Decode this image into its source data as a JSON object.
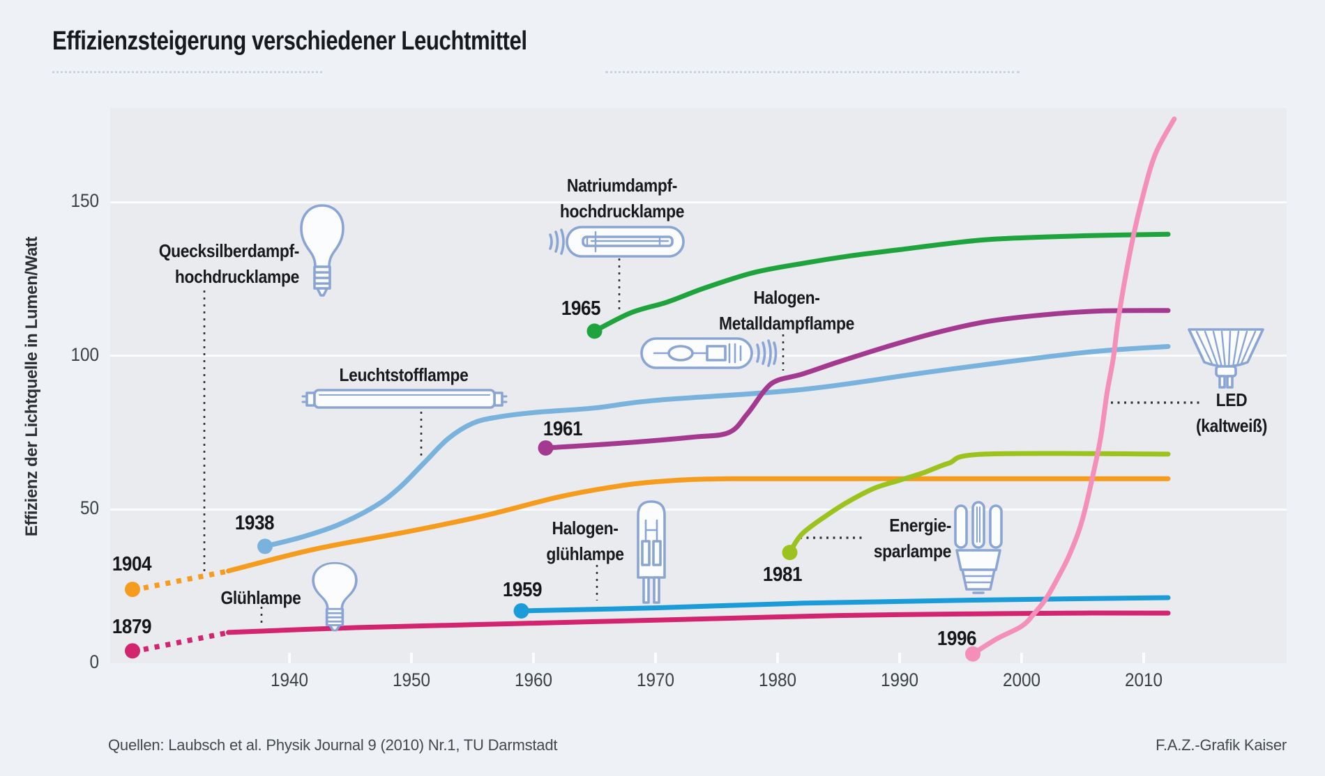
{
  "title": "Effizienzsteigerung verschiedener Leuchtmittel",
  "source": "Quellen: Laubsch et al. Physik Journal 9 (2010) Nr.1, TU Darmstadt",
  "credit": "F.A.Z.-Grafik Kaiser",
  "y_axis": {
    "title": "Effizienz der Lichtquelle in Lumen/Watt",
    "ticks": [
      "0",
      "50",
      "100",
      "150"
    ]
  },
  "x_axis": {
    "ticks": [
      "1940",
      "1950",
      "1960",
      "1970",
      "1980",
      "1990",
      "2000",
      "2010"
    ]
  },
  "colors": {
    "page_background": "#eef1f5",
    "plot_background": "#e9ebee",
    "top_band": "#edeff3",
    "gridline": "#fbfcfd",
    "text": "#17191c",
    "tick_text": "#3b4045",
    "icon_stroke": "#8aa5d3",
    "leader": "#2e3235"
  },
  "chart_data": {
    "type": "line",
    "title": "Effizienzsteigerung verschiedener Leuchtmittel",
    "xlabel": "",
    "ylabel": "Effizienz der Lichtquelle in Lumen/Watt",
    "xlim": [
      1925,
      2021
    ],
    "ylim": [
      0,
      180
    ],
    "grid": "horizontal-white-lines",
    "legend_position": "inline-labels-with-leader-lines",
    "series": [
      {
        "id": "gluehlampe",
        "name": "Glühlampe",
        "label_lines": [
          "Glühlampe"
        ],
        "start_label": "1879",
        "color": "#D2246F",
        "icon": "incandescent-bulb-icon",
        "intro": {
          "note": "dotted pre-axis segment from 1879 dot",
          "value": 4
        },
        "points": [
          [
            1935,
            10
          ],
          [
            1945,
            11.5
          ],
          [
            1955,
            12.5
          ],
          [
            1965,
            13.5
          ],
          [
            1975,
            14.5
          ],
          [
            1985,
            15.5
          ],
          [
            1995,
            16
          ],
          [
            2005,
            16.3
          ],
          [
            2012,
            16.3
          ]
        ]
      },
      {
        "id": "quecksilber",
        "name": "Quecksilberdampf-hochdrucklampe",
        "label_lines": [
          "Quecksilberdampf-",
          "hochdrucklampe"
        ],
        "start_label": "1904",
        "color": "#F59B1E",
        "icon": "mercury-vapor-bulb-icon",
        "intro": {
          "note": "dotted pre-axis segment from 1904 dot",
          "value": 24
        },
        "points": [
          [
            1935,
            30
          ],
          [
            1942,
            37
          ],
          [
            1950,
            43
          ],
          [
            1956,
            48
          ],
          [
            1962,
            54
          ],
          [
            1966,
            57
          ],
          [
            1970,
            59
          ],
          [
            1976,
            60
          ],
          [
            1990,
            60
          ],
          [
            2012,
            60
          ]
        ]
      },
      {
        "id": "leuchtstoff",
        "name": "Leuchtstofflampe",
        "label_lines": [
          "Leuchtstofflampe"
        ],
        "start_label": "1938",
        "color": "#79B2DC",
        "icon": "fluorescent-tube-icon",
        "points": [
          [
            1938,
            38
          ],
          [
            1941,
            41
          ],
          [
            1944,
            45
          ],
          [
            1947,
            51
          ],
          [
            1949,
            57
          ],
          [
            1951,
            65
          ],
          [
            1953,
            73
          ],
          [
            1955,
            78
          ],
          [
            1957,
            80
          ],
          [
            1960,
            81.5
          ],
          [
            1965,
            83
          ],
          [
            1970,
            85.5
          ],
          [
            1982,
            89
          ],
          [
            1993,
            95
          ],
          [
            2005,
            101
          ],
          [
            2012,
            103
          ]
        ]
      },
      {
        "id": "halogenglueh",
        "name": "Halogen-glühlampe",
        "label_lines": [
          "Halogen-",
          "glühlampe"
        ],
        "start_label": "1959",
        "color": "#1B9CD9",
        "icon": "halogen-capsule-icon",
        "points": [
          [
            1959,
            17
          ],
          [
            1970,
            18
          ],
          [
            1982,
            19.5
          ],
          [
            1996,
            20.5
          ],
          [
            2012,
            21.3
          ]
        ]
      },
      {
        "id": "halogenmetall",
        "name": "Halogen-Metalldampflampe",
        "label_lines": [
          "Halogen-",
          "Metalldampflampe"
        ],
        "start_label": "1961",
        "color": "#A33A90",
        "icon": "metal-halide-lamp-icon",
        "points": [
          [
            1961,
            70
          ],
          [
            1967,
            71.5
          ],
          [
            1973,
            73.5
          ],
          [
            1976,
            75
          ],
          [
            1977.5,
            81
          ],
          [
            1979,
            89
          ],
          [
            1980,
            92
          ],
          [
            1982,
            94
          ],
          [
            1985,
            98
          ],
          [
            1989,
            103
          ],
          [
            1993,
            107.5
          ],
          [
            1997,
            111
          ],
          [
            2001,
            113
          ],
          [
            2006,
            114.5
          ],
          [
            2012,
            114.7
          ]
        ]
      },
      {
        "id": "natrium",
        "name": "Natriumdampf-hochdrucklampe",
        "label_lines": [
          "Natriumdampf-",
          "hochdrucklampe"
        ],
        "start_label": "1965",
        "color": "#1FA33C",
        "icon": "sodium-vapor-lamp-icon",
        "points": [
          [
            1965,
            108
          ],
          [
            1968,
            114
          ],
          [
            1971,
            117.5
          ],
          [
            1974,
            122
          ],
          [
            1978,
            127
          ],
          [
            1982,
            130
          ],
          [
            1986,
            132.5
          ],
          [
            1990,
            134.5
          ],
          [
            1994,
            136.5
          ],
          [
            1998,
            138
          ],
          [
            2005,
            139
          ],
          [
            2012,
            139.5
          ]
        ]
      },
      {
        "id": "energiespar",
        "name": "Energiesparlampe",
        "label_lines": [
          "Energie-",
          "sparlampe"
        ],
        "start_label": "1981",
        "color": "#9CC21E",
        "icon": "cfl-icon",
        "points": [
          [
            1981,
            36
          ],
          [
            1982,
            42
          ],
          [
            1984,
            48
          ],
          [
            1986,
            53
          ],
          [
            1988,
            57
          ],
          [
            1990,
            59.5
          ],
          [
            1992,
            62
          ],
          [
            1994,
            65
          ],
          [
            1997,
            68
          ],
          [
            2012,
            68
          ]
        ]
      },
      {
        "id": "led",
        "name": "LED (kaltweiß)",
        "label_lines": [
          "LED",
          "(kaltweiß)"
        ],
        "start_label": "1996",
        "color": "#F48FBA",
        "icon": "led-spot-icon",
        "points": [
          [
            1996,
            3
          ],
          [
            1998,
            8
          ],
          [
            2000,
            12
          ],
          [
            2001,
            16
          ],
          [
            2002,
            21
          ],
          [
            2003,
            28
          ],
          [
            2004,
            36
          ],
          [
            2005,
            47
          ],
          [
            2006,
            64
          ],
          [
            2006.5,
            74
          ],
          [
            2007,
            88
          ],
          [
            2007.5,
            99
          ],
          [
            2008,
            114
          ],
          [
            2009,
            136
          ],
          [
            2010,
            153
          ],
          [
            2011,
            166
          ],
          [
            2012.5,
            177
          ]
        ]
      }
    ]
  }
}
